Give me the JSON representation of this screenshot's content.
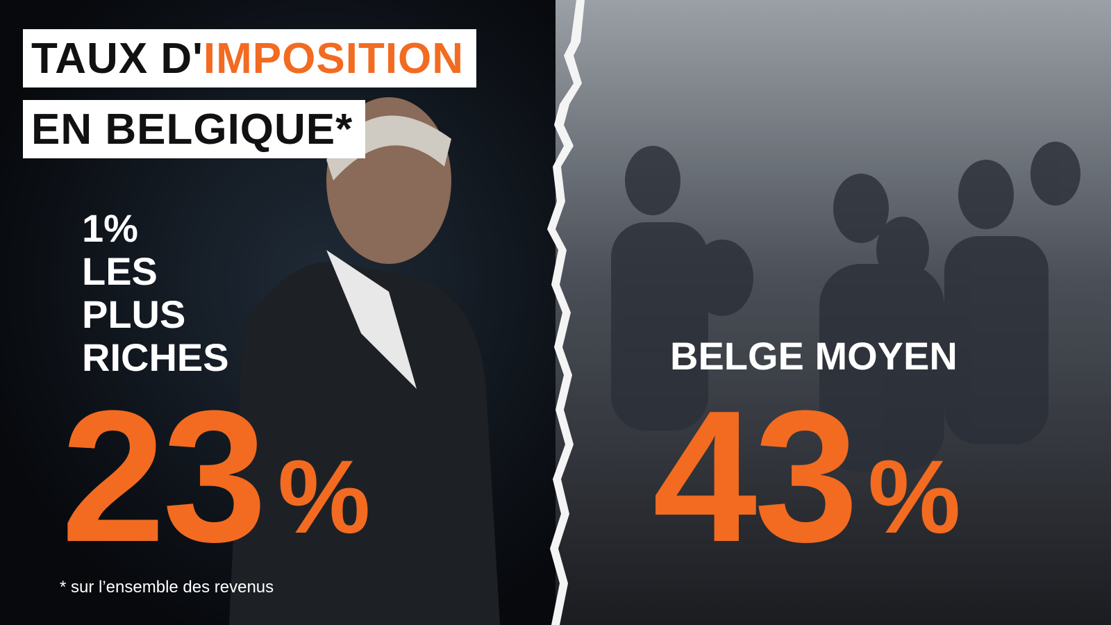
{
  "title": {
    "line1_plain": "TAUX D'",
    "line1_accent": "IMPOSITION",
    "line2": "EN BELGIQUE*"
  },
  "left": {
    "label_lines": [
      "1%",
      "LES",
      "PLUS",
      "RICHES"
    ],
    "number": "23",
    "unit": "%"
  },
  "right": {
    "label": "BELGE MOYEN",
    "number": "43",
    "unit": "%"
  },
  "footnote": "* sur l’ensemble des revenus"
}
